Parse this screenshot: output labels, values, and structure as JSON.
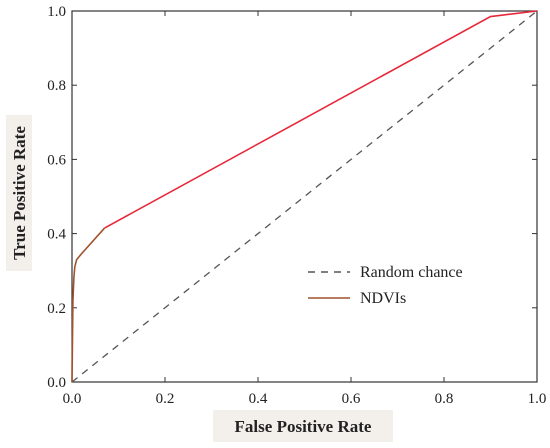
{
  "chart_data": {
    "type": "line",
    "xlabel": "False Positive Rate",
    "ylabel": "True Positive Rate",
    "xlim": [
      0,
      1
    ],
    "ylim": [
      0,
      1
    ],
    "xticks": [
      "0.0",
      "0.2",
      "0.4",
      "0.6",
      "0.8",
      "1.0"
    ],
    "yticks": [
      "0.0",
      "0.2",
      "0.4",
      "0.6",
      "0.8",
      "1.0"
    ],
    "grid": false,
    "legend_position": "lower-right",
    "series": [
      {
        "name": "Random chance",
        "style": "dashed",
        "color": "#555555",
        "x": [
          0,
          1
        ],
        "y": [
          0,
          1
        ]
      },
      {
        "name": "NDVIs",
        "style": "solid",
        "color": "#a0522d",
        "segment_colors": [
          "#a0522d",
          "#e8283a"
        ],
        "x": [
          0,
          0.002,
          0.004,
          0.006,
          0.01,
          0.02,
          0.07,
          0.9,
          1.0
        ],
        "y": [
          0,
          0.22,
          0.28,
          0.31,
          0.33,
          0.345,
          0.415,
          0.985,
          1.0
        ]
      }
    ]
  }
}
